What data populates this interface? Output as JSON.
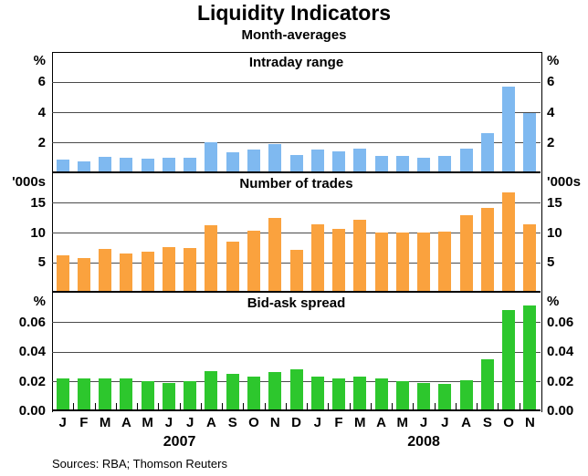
{
  "title": "Liquidity Indicators",
  "subtitle": "Month-averages",
  "footer": "Sources: RBA; Thomson Reuters",
  "x_axis": {
    "months": [
      "J",
      "F",
      "M",
      "A",
      "M",
      "J",
      "J",
      "A",
      "S",
      "O",
      "N",
      "D",
      "J",
      "F",
      "M",
      "A",
      "M",
      "J",
      "J",
      "A",
      "S",
      "O",
      "N"
    ],
    "years": [
      {
        "label": "2007",
        "start_index": 0,
        "end_index": 11
      },
      {
        "label": "2008",
        "start_index": 12,
        "end_index": 22
      }
    ]
  },
  "chart_data": [
    {
      "type": "bar",
      "title": "Intraday range",
      "unit": "%",
      "ylim": [
        0,
        8
      ],
      "yticks": [
        2,
        4,
        6
      ],
      "ytick_labels": [
        "2",
        "4",
        "6"
      ],
      "zero_label": null,
      "color": "#7FB9F0",
      "grid": true,
      "categories": [
        "Jan-07",
        "Feb-07",
        "Mar-07",
        "Apr-07",
        "May-07",
        "Jun-07",
        "Jul-07",
        "Aug-07",
        "Sep-07",
        "Oct-07",
        "Nov-07",
        "Dec-07",
        "Jan-08",
        "Feb-08",
        "Mar-08",
        "Apr-08",
        "May-08",
        "Jun-08",
        "Jul-08",
        "Aug-08",
        "Sep-08",
        "Oct-08",
        "Nov-08"
      ],
      "values": [
        0.8,
        0.65,
        0.95,
        0.9,
        0.85,
        0.9,
        0.9,
        1.95,
        1.25,
        1.45,
        1.8,
        1.1,
        1.45,
        1.3,
        1.5,
        1.05,
        1.0,
        0.9,
        1.0,
        1.5,
        2.5,
        5.6,
        3.85
      ]
    },
    {
      "type": "bar",
      "title": "Number of trades",
      "unit": "'000s",
      "ylim": [
        0,
        20
      ],
      "yticks": [
        5,
        10,
        15
      ],
      "ytick_labels": [
        "5",
        "10",
        "15"
      ],
      "zero_label": null,
      "color": "#FAA23E",
      "grid": true,
      "categories": [
        "Jan-07",
        "Feb-07",
        "Mar-07",
        "Apr-07",
        "May-07",
        "Jun-07",
        "Jul-07",
        "Aug-07",
        "Sep-07",
        "Oct-07",
        "Nov-07",
        "Dec-07",
        "Jan-08",
        "Feb-08",
        "Mar-08",
        "Apr-08",
        "May-08",
        "Jun-08",
        "Jul-08",
        "Aug-08",
        "Sep-08",
        "Oct-08",
        "Nov-08"
      ],
      "values": [
        6.0,
        5.5,
        7.0,
        6.2,
        6.5,
        7.4,
        7.2,
        11.0,
        8.3,
        10.1,
        12.2,
        6.8,
        11.2,
        10.4,
        11.9,
        9.8,
        9.8,
        9.8,
        10.0,
        12.6,
        13.9,
        16.5,
        11.1
      ]
    },
    {
      "type": "bar",
      "title": "Bid-ask spread",
      "unit": "%",
      "ylim": [
        0,
        0.08
      ],
      "yticks": [
        0.02,
        0.04,
        0.06
      ],
      "ytick_labels": [
        "0.02",
        "0.04",
        "0.06"
      ],
      "zero_label": "0.00",
      "color": "#2DC72D",
      "grid": true,
      "categories": [
        "Jan-07",
        "Feb-07",
        "Mar-07",
        "Apr-07",
        "May-07",
        "Jun-07",
        "Jul-07",
        "Aug-07",
        "Sep-07",
        "Oct-07",
        "Nov-07",
        "Dec-07",
        "Jan-08",
        "Feb-08",
        "Mar-08",
        "Apr-08",
        "May-08",
        "Jun-08",
        "Jul-08",
        "Aug-08",
        "Sep-08",
        "Oct-08",
        "Nov-08"
      ],
      "values": [
        0.021,
        0.021,
        0.021,
        0.021,
        0.019,
        0.018,
        0.019,
        0.026,
        0.024,
        0.022,
        0.025,
        0.027,
        0.022,
        0.021,
        0.022,
        0.021,
        0.019,
        0.018,
        0.017,
        0.02,
        0.034,
        0.067,
        0.07
      ]
    }
  ]
}
